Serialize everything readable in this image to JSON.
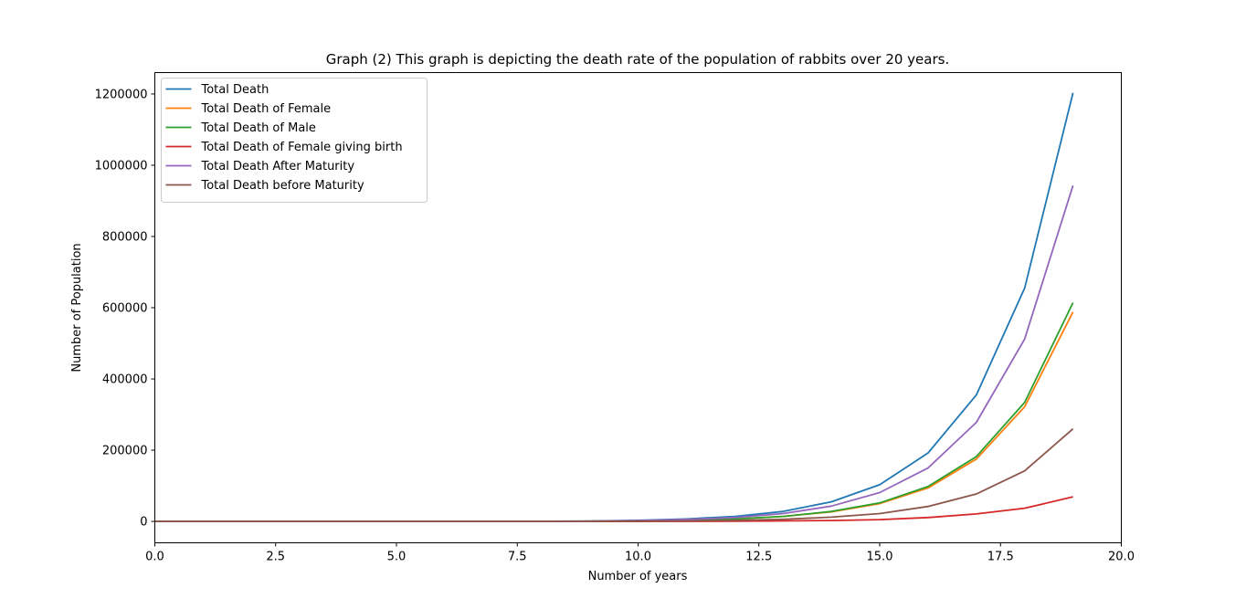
{
  "chart_data": {
    "type": "line",
    "title": "Graph (2) This graph is depicting the death rate of the population of rabbits over 20 years.",
    "xlabel": "Number of years",
    "ylabel": "Number of Population",
    "xlim": [
      0,
      20
    ],
    "ylim": [
      -60000,
      1260000
    ],
    "xticks": [
      0,
      2.5,
      5,
      7.5,
      10,
      12.5,
      15,
      17.5,
      20
    ],
    "xtick_labels": [
      "0.0",
      "2.5",
      "5.0",
      "7.5",
      "10.0",
      "12.5",
      "15.0",
      "17.5",
      "20.0"
    ],
    "yticks": [
      0,
      200000,
      400000,
      600000,
      800000,
      1000000,
      1200000
    ],
    "ytick_labels": [
      "0",
      "200000",
      "400000",
      "600000",
      "800000",
      "1000000",
      "1200000"
    ],
    "grid": false,
    "legend_position": "upper-left",
    "x": [
      0,
      1,
      2,
      3,
      4,
      5,
      6,
      7,
      8,
      9,
      10,
      11,
      12,
      13,
      14,
      15,
      16,
      17,
      18,
      19
    ],
    "series": [
      {
        "name": "Total Death",
        "color": "#1f77b4",
        "values": [
          0,
          0,
          0,
          0,
          0,
          20,
          60,
          150,
          400,
          1000,
          3000,
          7000,
          14000,
          28000,
          55000,
          103000,
          192000,
          355000,
          655000,
          1203000
        ]
      },
      {
        "name": "Total Death of Female",
        "color": "#ff7f0e",
        "values": [
          0,
          0,
          0,
          0,
          0,
          10,
          30,
          75,
          200,
          500,
          1500,
          3500,
          7000,
          14000,
          27000,
          50000,
          94000,
          175000,
          322000,
          588000
        ]
      },
      {
        "name": "Total Death of Male",
        "color": "#2ca02c",
        "values": [
          0,
          0,
          0,
          0,
          0,
          10,
          30,
          75,
          200,
          500,
          1500,
          3500,
          7000,
          14000,
          28000,
          52000,
          98000,
          182000,
          334000,
          614000
        ]
      },
      {
        "name": "Total Death of Female giving birth",
        "color": "#d62728",
        "values": [
          0,
          0,
          0,
          0,
          0,
          0,
          0,
          0,
          0,
          0,
          0,
          300,
          600,
          1500,
          2500,
          5000,
          11000,
          21000,
          37000,
          69000
        ]
      },
      {
        "name": "Total Death After Maturity",
        "color": "#9467bd",
        "values": [
          0,
          0,
          0,
          0,
          0,
          15,
          45,
          110,
          300,
          750,
          2300,
          5500,
          11000,
          22000,
          43000,
          81000,
          150000,
          278000,
          512000,
          943000
        ]
      },
      {
        "name": "Total Death before Maturity",
        "color": "#8c564b",
        "values": [
          0,
          0,
          0,
          0,
          0,
          5,
          15,
          40,
          100,
          250,
          700,
          1500,
          3000,
          6000,
          12000,
          22000,
          42000,
          77000,
          142000,
          260000
        ]
      }
    ]
  }
}
